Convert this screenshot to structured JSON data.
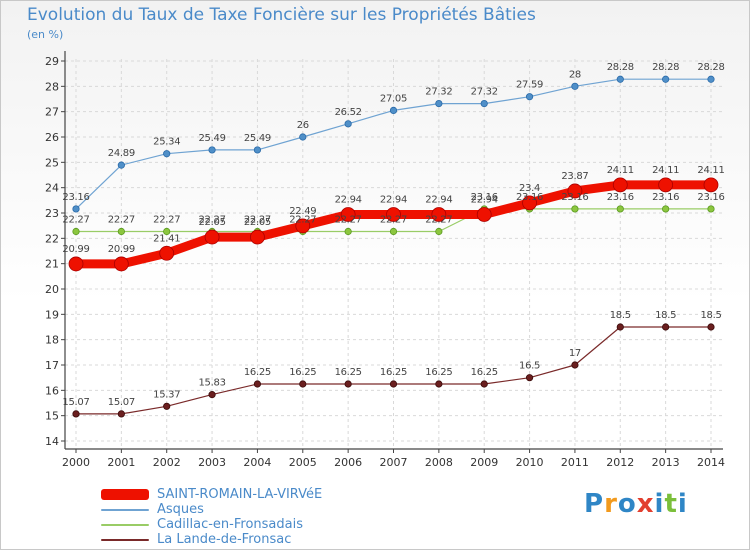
{
  "chart_data": {
    "type": "line",
    "title": "Evolution du Taux de Taxe Foncière sur les Propriétés Bâties",
    "ylabel": "(en %)",
    "xlabel": "",
    "ylim": [
      14,
      29
    ],
    "yticks": [
      "14",
      "15",
      "16",
      "17",
      "18",
      "19",
      "20",
      "21",
      "22",
      "23",
      "24",
      "25",
      "26",
      "27",
      "28",
      "29"
    ],
    "categories": [
      "2000",
      "2001",
      "2002",
      "2003",
      "2004",
      "2005",
      "2006",
      "2007",
      "2008",
      "2009",
      "2010",
      "2011",
      "2012",
      "2013",
      "2014"
    ],
    "series": [
      {
        "name": "SAINT-ROMAIN-LA-VIRVéE",
        "color": "#ee1100",
        "values": [
          20.99,
          20.99,
          21.41,
          22.05,
          22.05,
          22.49,
          22.94,
          22.94,
          22.94,
          22.94,
          23.4,
          23.87,
          24.11,
          24.11,
          24.11
        ],
        "labels": [
          "20.99",
          "20.99",
          "21.41",
          "22.05",
          "22.05",
          "22.49",
          "22.94",
          "22.94",
          "22.94",
          "22.94",
          "23.4",
          "23.87",
          "24.11",
          "24.11",
          "24.11"
        ]
      },
      {
        "name": "Asques",
        "color": "#6fa3d2",
        "values": [
          23.16,
          24.89,
          25.34,
          25.49,
          25.49,
          26,
          26.52,
          27.05,
          27.32,
          27.32,
          27.59,
          28,
          28.28,
          28.28,
          28.28
        ],
        "labels": [
          "23.16",
          "24.89",
          "25.34",
          "25.49",
          "25.49",
          "26",
          "26.52",
          "27.05",
          "27.32",
          "27.32",
          "27.59",
          "28",
          "28.28",
          "28.28",
          "28.28"
        ]
      },
      {
        "name": "Cadillac-en-Fronsadais",
        "color": "#99cc66",
        "values": [
          22.27,
          22.27,
          22.27,
          22.27,
          22.27,
          22.27,
          22.27,
          22.27,
          22.27,
          23.16,
          23.16,
          23.16,
          23.16,
          23.16,
          23.16
        ],
        "labels": [
          "22.27",
          "22.27",
          "22.27",
          "22.27",
          "22.27",
          "22.27",
          "22.27",
          "22.27",
          "22.27",
          "23.16",
          "23.16",
          "23.16",
          "23.16",
          "23.16",
          "23.16"
        ]
      },
      {
        "name": "La Lande-de-Fronsac",
        "color": "#7a2a2a",
        "values": [
          15.07,
          15.07,
          15.37,
          15.83,
          16.25,
          16.25,
          16.25,
          16.25,
          16.25,
          16.25,
          16.5,
          17,
          18.5,
          18.5,
          18.5
        ],
        "labels": [
          "15.07",
          "15.07",
          "15.37",
          "15.83",
          "16.25",
          "16.25",
          "16.25",
          "16.25",
          "16.25",
          "16.25",
          "16.5",
          "17",
          "18.5",
          "18.5",
          "18.5"
        ]
      }
    ],
    "legend_position": "bottom-left"
  },
  "brand": {
    "letters": [
      "P",
      "r",
      "o",
      "x",
      "i",
      "t",
      "i"
    ],
    "colors": [
      "#2f86c6",
      "#f29a1d",
      "#2f86c6",
      "#e23f2f",
      "#2f86c6",
      "#7bbf3a",
      "#2f86c6"
    ]
  }
}
